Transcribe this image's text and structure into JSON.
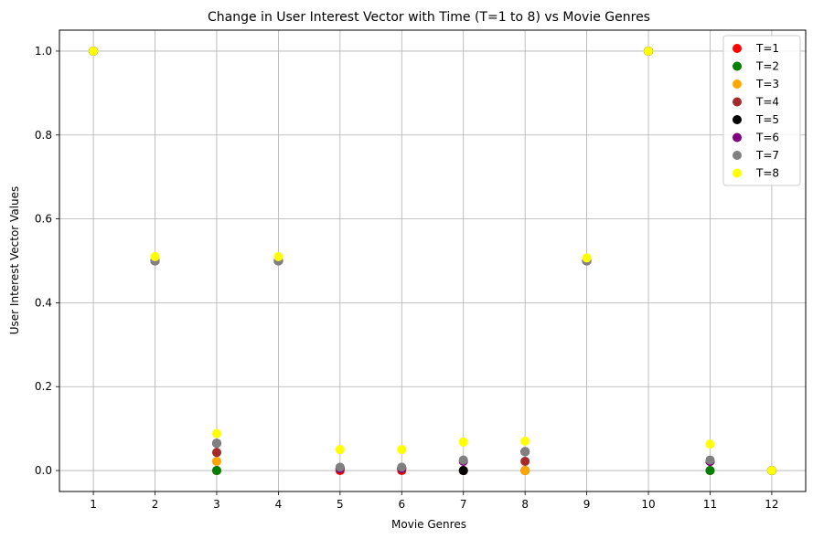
{
  "chart_data": {
    "type": "scatter",
    "title": "Change in User Interest Vector with Time (T=1 to 8) vs Movie Genres",
    "xlabel": "Movie Genres",
    "ylabel": "User Interest Vector Values",
    "x": [
      1,
      2,
      3,
      4,
      5,
      6,
      7,
      8,
      9,
      10,
      11,
      12
    ],
    "x_tick_labels": [
      "1",
      "2",
      "3",
      "4",
      "5",
      "6",
      "7",
      "8",
      "9",
      "10",
      "11",
      "12"
    ],
    "y_ticks": [
      0.0,
      0.2,
      0.4,
      0.6,
      0.8,
      1.0
    ],
    "y_tick_labels": [
      "0.0",
      "0.2",
      "0.4",
      "0.6",
      "0.8",
      "1.0"
    ],
    "xlim": [
      0.45,
      12.55
    ],
    "ylim": [
      -0.05,
      1.05
    ],
    "grid": true,
    "legend_position": "top-right",
    "series": [
      {
        "name": "T=1",
        "color": "#ff0000",
        "values": [
          1.0,
          0.5,
          0.0,
          0.5,
          0.0,
          0.0,
          0.0,
          0.0,
          0.5,
          1.0,
          0.0,
          0.0
        ]
      },
      {
        "name": "T=2",
        "color": "#008000",
        "values": [
          1.0,
          0.5,
          0.0,
          0.5,
          0.005,
          0.005,
          0.0,
          0.0,
          0.5,
          1.0,
          0.0,
          0.0
        ]
      },
      {
        "name": "T=3",
        "color": "#ffa500",
        "values": [
          1.0,
          0.5,
          0.022,
          0.5,
          0.005,
          0.005,
          0.0,
          0.0,
          0.5,
          1.0,
          0.022,
          0.0
        ]
      },
      {
        "name": "T=4",
        "color": "#a52a2a",
        "values": [
          1.0,
          0.5,
          0.043,
          0.5,
          0.005,
          0.005,
          0.0,
          0.022,
          0.5,
          1.0,
          0.022,
          0.0
        ]
      },
      {
        "name": "T=5",
        "color": "#000000",
        "values": [
          1.0,
          0.5,
          0.065,
          0.5,
          0.005,
          0.005,
          0.0,
          0.045,
          0.5,
          1.0,
          0.022,
          0.0
        ]
      },
      {
        "name": "T=6",
        "color": "#800080",
        "values": [
          1.0,
          0.5,
          0.065,
          0.5,
          0.005,
          0.005,
          0.022,
          0.045,
          0.5,
          1.0,
          0.022,
          0.0
        ]
      },
      {
        "name": "T=7",
        "color": "#808080",
        "values": [
          1.0,
          0.5,
          0.065,
          0.5,
          0.008,
          0.008,
          0.025,
          0.045,
          0.5,
          1.0,
          0.025,
          0.0
        ]
      },
      {
        "name": "T=8",
        "color": "#ffff00",
        "values": [
          1.0,
          0.51,
          0.088,
          0.51,
          0.05,
          0.05,
          0.068,
          0.07,
          0.507,
          1.0,
          0.063,
          0.0
        ]
      }
    ]
  }
}
